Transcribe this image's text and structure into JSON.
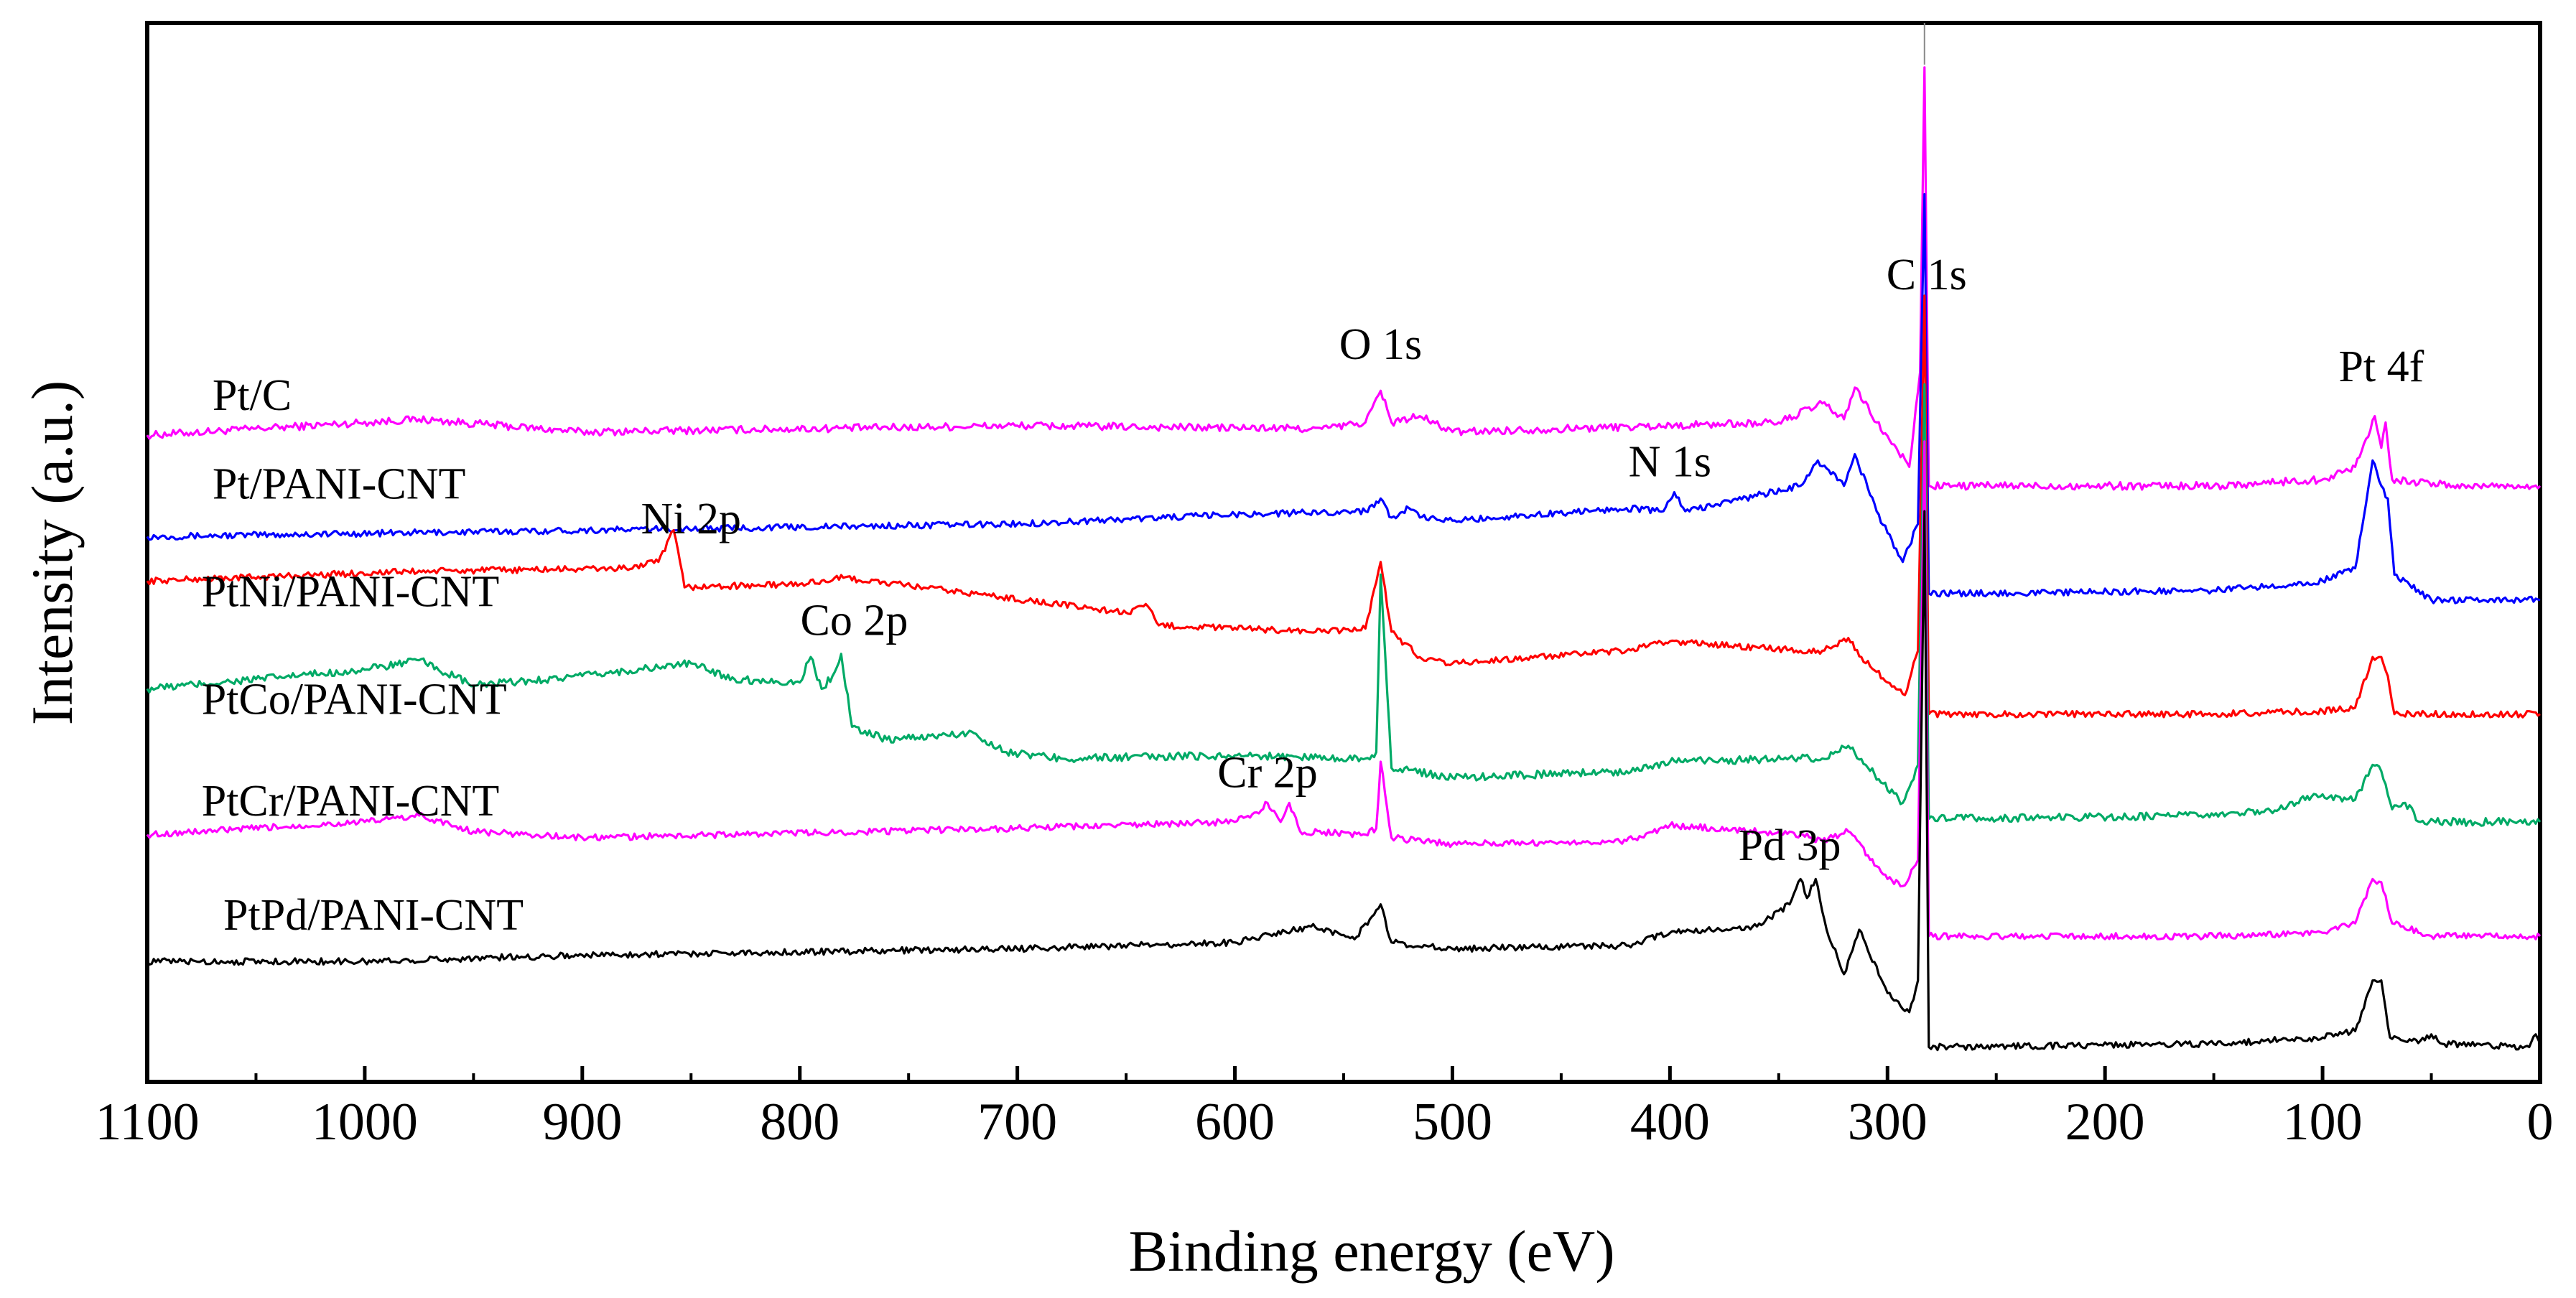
{
  "chart_data": {
    "type": "line",
    "title": "",
    "xlabel": "Binding energy (eV)",
    "ylabel": "Intensity (a.u.)",
    "xlim": [
      1100,
      0
    ],
    "x_reversed": true,
    "x_ticks": [
      1100,
      1000,
      900,
      800,
      700,
      600,
      500,
      400,
      300,
      200,
      100,
      0
    ],
    "y_ticks": [],
    "grid": false,
    "legend": "inline labels on left",
    "series": [
      {
        "name": "Pt/C",
        "color": "#ff00ff",
        "label_pos": [
          1070,
          8.4
        ],
        "anchors": [
          [
            1100,
            8.0
          ],
          [
            975,
            8.25
          ],
          [
            900,
            8.05
          ],
          [
            700,
            8.15
          ],
          [
            560,
            8.1
          ],
          [
            540,
            8.2
          ],
          [
            533,
            8.7
          ],
          [
            528,
            8.2
          ],
          [
            515,
            8.3
          ],
          [
            500,
            8.05
          ],
          [
            350,
            8.2
          ],
          [
            330,
            8.5
          ],
          [
            320,
            8.25
          ],
          [
            315,
            8.75
          ],
          [
            305,
            8.2
          ],
          [
            290,
            7.5
          ],
          [
            285,
            9.0
          ],
          [
            283,
            13.8
          ],
          [
            281,
            7.2
          ],
          [
            270,
            7.2
          ],
          [
            150,
            7.2
          ],
          [
            100,
            7.3
          ],
          [
            85,
            7.5
          ],
          [
            76,
            8.3
          ],
          [
            73,
            7.8
          ],
          [
            71,
            8.2
          ],
          [
            68,
            7.3
          ],
          [
            40,
            7.2
          ],
          [
            0,
            7.2
          ]
        ],
        "noise": 0.06
      },
      {
        "name": "Pt/PANI-CNT",
        "color": "#0000ff",
        "label_pos": [
          1070,
          7.0
        ],
        "anchors": [
          [
            1100,
            6.4
          ],
          [
            900,
            6.5
          ],
          [
            700,
            6.6
          ],
          [
            600,
            6.75
          ],
          [
            540,
            6.8
          ],
          [
            533,
            7.0
          ],
          [
            528,
            6.7
          ],
          [
            520,
            6.85
          ],
          [
            515,
            6.7
          ],
          [
            500,
            6.65
          ],
          [
            420,
            6.85
          ],
          [
            403,
            6.8
          ],
          [
            398,
            7.1
          ],
          [
            393,
            6.8
          ],
          [
            340,
            7.2
          ],
          [
            332,
            7.6
          ],
          [
            320,
            7.2
          ],
          [
            315,
            7.7
          ],
          [
            305,
            6.8
          ],
          [
            293,
            6.0
          ],
          [
            286,
            6.6
          ],
          [
            283,
            11.8
          ],
          [
            281,
            5.5
          ],
          [
            270,
            5.5
          ],
          [
            150,
            5.55
          ],
          [
            100,
            5.7
          ],
          [
            85,
            5.9
          ],
          [
            77,
            7.6
          ],
          [
            73,
            7.2
          ],
          [
            70,
            7.0
          ],
          [
            67,
            5.8
          ],
          [
            50,
            5.4
          ],
          [
            0,
            5.4
          ]
        ],
        "noise": 0.05
      },
      {
        "name": "PtNi/PANI-CNT",
        "color": "#ff0000",
        "label_pos": [
          1075,
          5.3
        ],
        "anchors": [
          [
            1100,
            5.7
          ],
          [
            980,
            5.85
          ],
          [
            880,
            5.9
          ],
          [
            865,
            6.0
          ],
          [
            858,
            6.5
          ],
          [
            853,
            5.6
          ],
          [
            800,
            5.65
          ],
          [
            780,
            5.75
          ],
          [
            720,
            5.5
          ],
          [
            650,
            5.2
          ],
          [
            640,
            5.3
          ],
          [
            635,
            5.0
          ],
          [
            560,
            4.9
          ],
          [
            540,
            4.95
          ],
          [
            533,
            6.0
          ],
          [
            528,
            4.9
          ],
          [
            515,
            4.5
          ],
          [
            500,
            4.4
          ],
          [
            420,
            4.6
          ],
          [
            400,
            4.75
          ],
          [
            340,
            4.6
          ],
          [
            330,
            4.6
          ],
          [
            318,
            4.8
          ],
          [
            312,
            4.5
          ],
          [
            300,
            4.1
          ],
          [
            292,
            3.9
          ],
          [
            286,
            4.6
          ],
          [
            283,
            10.2
          ],
          [
            281,
            3.6
          ],
          [
            270,
            3.6
          ],
          [
            150,
            3.6
          ],
          [
            100,
            3.65
          ],
          [
            85,
            3.7
          ],
          [
            77,
            4.5
          ],
          [
            73,
            4.5
          ],
          [
            70,
            4.2
          ],
          [
            67,
            3.6
          ],
          [
            50,
            3.6
          ],
          [
            0,
            3.6
          ]
        ],
        "noise": 0.05
      },
      {
        "name": "PtCo/PANI-CNT",
        "color": "#00aa66",
        "label_pos": [
          1075,
          3.6
        ],
        "anchors": [
          [
            1100,
            4.0
          ],
          [
            1000,
            4.3
          ],
          [
            975,
            4.45
          ],
          [
            950,
            4.05
          ],
          [
            900,
            4.2
          ],
          [
            850,
            4.4
          ],
          [
            830,
            4.15
          ],
          [
            800,
            4.1
          ],
          [
            795,
            4.5
          ],
          [
            790,
            4.0
          ],
          [
            785,
            4.2
          ],
          [
            781,
            4.55
          ],
          [
            776,
            3.4
          ],
          [
            760,
            3.2
          ],
          [
            720,
            3.3
          ],
          [
            705,
            3.0
          ],
          [
            680,
            2.9
          ],
          [
            600,
            2.95
          ],
          [
            540,
            2.9
          ],
          [
            535,
            3.0
          ],
          [
            533,
            5.8
          ],
          [
            528,
            2.75
          ],
          [
            500,
            2.6
          ],
          [
            420,
            2.7
          ],
          [
            400,
            2.85
          ],
          [
            340,
            2.9
          ],
          [
            330,
            2.9
          ],
          [
            318,
            3.1
          ],
          [
            310,
            2.8
          ],
          [
            293,
            2.2
          ],
          [
            286,
            2.8
          ],
          [
            283,
            8.8
          ],
          [
            281,
            1.95
          ],
          [
            270,
            1.95
          ],
          [
            150,
            2.0
          ],
          [
            120,
            2.1
          ],
          [
            105,
            2.3
          ],
          [
            85,
            2.25
          ],
          [
            77,
            2.8
          ],
          [
            73,
            2.7
          ],
          [
            68,
            2.1
          ],
          [
            62,
            2.2
          ],
          [
            55,
            1.9
          ],
          [
            0,
            1.9
          ]
        ],
        "noise": 0.06
      },
      {
        "name": "PtCr/PANI-CNT",
        "color": "#ff00ff",
        "label_pos": [
          1075,
          2.0
        ],
        "anchors": [
          [
            1100,
            1.7
          ],
          [
            1000,
            1.9
          ],
          [
            975,
            2.0
          ],
          [
            950,
            1.75
          ],
          [
            900,
            1.65
          ],
          [
            700,
            1.8
          ],
          [
            600,
            1.9
          ],
          [
            590,
            2.05
          ],
          [
            585,
            2.2
          ],
          [
            579,
            1.9
          ],
          [
            575,
            2.2
          ],
          [
            570,
            1.75
          ],
          [
            540,
            1.7
          ],
          [
            535,
            1.8
          ],
          [
            533,
            2.85
          ],
          [
            528,
            1.65
          ],
          [
            500,
            1.55
          ],
          [
            420,
            1.6
          ],
          [
            400,
            1.85
          ],
          [
            340,
            1.7
          ],
          [
            330,
            1.6
          ],
          [
            318,
            1.75
          ],
          [
            300,
            1.0
          ],
          [
            292,
            0.9
          ],
          [
            286,
            1.3
          ],
          [
            283,
            7.9
          ],
          [
            281,
            0.1
          ],
          [
            270,
            0.1
          ],
          [
            150,
            0.1
          ],
          [
            100,
            0.15
          ],
          [
            85,
            0.3
          ],
          [
            77,
            1.0
          ],
          [
            73,
            0.95
          ],
          [
            68,
            0.3
          ],
          [
            50,
            0.1
          ],
          [
            0,
            0.1
          ]
        ],
        "noise": 0.05
      },
      {
        "name": "PtPd/PANI-CNT",
        "color": "#000000",
        "label_pos": [
          1065,
          0.2
        ],
        "anchors": [
          [
            1100,
            -0.3
          ],
          [
            1000,
            -0.3
          ],
          [
            900,
            -0.2
          ],
          [
            700,
            -0.1
          ],
          [
            600,
            0.0
          ],
          [
            565,
            0.25
          ],
          [
            545,
            0.05
          ],
          [
            533,
            0.6
          ],
          [
            528,
            0.0
          ],
          [
            500,
            -0.1
          ],
          [
            420,
            -0.05
          ],
          [
            400,
            0.15
          ],
          [
            360,
            0.25
          ],
          [
            345,
            0.6
          ],
          [
            340,
            1.0
          ],
          [
            337,
            0.7
          ],
          [
            333,
            1.0
          ],
          [
            328,
            0.2
          ],
          [
            320,
            -0.5
          ],
          [
            313,
            0.2
          ],
          [
            300,
            -0.8
          ],
          [
            290,
            -1.1
          ],
          [
            286,
            -0.6
          ],
          [
            283,
            6.8
          ],
          [
            281,
            -1.65
          ],
          [
            270,
            -1.65
          ],
          [
            150,
            -1.6
          ],
          [
            100,
            -1.5
          ],
          [
            85,
            -1.4
          ],
          [
            77,
            -0.6
          ],
          [
            73,
            -0.6
          ],
          [
            69,
            -1.5
          ],
          [
            55,
            -1.55
          ],
          [
            50,
            -1.45
          ],
          [
            45,
            -1.6
          ],
          [
            5,
            -1.65
          ],
          [
            2,
            -1.45
          ],
          [
            0,
            -1.6
          ]
        ],
        "noise": 0.05
      }
    ],
    "annotations": [
      {
        "text": "O 1s",
        "x": 533,
        "y": 9.2
      },
      {
        "text": "C 1s",
        "x": 282,
        "y": 10.3
      },
      {
        "text": "Pt 4f",
        "x": 73,
        "y": 8.85
      },
      {
        "text": "N 1s",
        "x": 400,
        "y": 7.35
      },
      {
        "text": "Ni 2p",
        "x": 850,
        "y": 6.45
      },
      {
        "text": "Co 2p",
        "x": 775,
        "y": 4.85
      },
      {
        "text": "Cr 2p",
        "x": 585,
        "y": 2.45
      },
      {
        "text": "Pd 3p",
        "x": 345,
        "y": 1.3
      }
    ]
  }
}
